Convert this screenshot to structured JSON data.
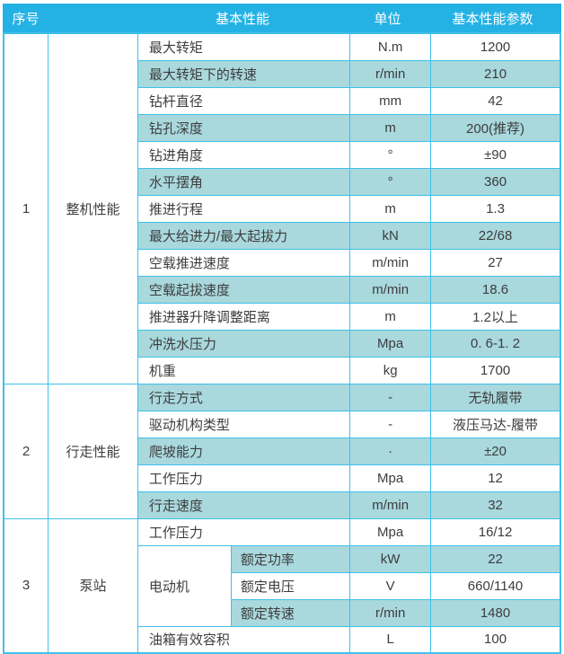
{
  "table": {
    "headers": {
      "index": "序号",
      "performance": "基本性能",
      "unit": "单位",
      "value": "基本性能参数"
    },
    "colors": {
      "header_bg": "#24b2e5",
      "row_alt_bg": "#a9d8dd",
      "border": "#3fc0ea",
      "text": "#3d3d3d"
    },
    "sections": [
      {
        "index": "1",
        "category": "整机性能",
        "rows": [
          {
            "label": "最大转矩",
            "unit": "N.m",
            "value": "1200"
          },
          {
            "label": "最大转矩下的转速",
            "unit": "r/min",
            "value": "210"
          },
          {
            "label": "钻杆直径",
            "unit": "mm",
            "value": "42"
          },
          {
            "label": "钻孔深度",
            "unit": "m",
            "value": "200(推荐)"
          },
          {
            "label": "钻进角度",
            "unit": "°",
            "value": "±90"
          },
          {
            "label": "水平摆角",
            "unit": "°",
            "value": "360"
          },
          {
            "label": "推进行程",
            "unit": "m",
            "value": "1.3"
          },
          {
            "label": "最大给进力/最大起拔力",
            "unit": "kN",
            "value": "22/68"
          },
          {
            "label": "空载推进速度",
            "unit": "m/min",
            "value": "27"
          },
          {
            "label": "空载起拔速度",
            "unit": "m/min",
            "value": "18.6"
          },
          {
            "label": "推进器升降调整距离",
            "unit": "m",
            "value": "1.2以上"
          },
          {
            "label": "冲洗水压力",
            "unit": "Mpa",
            "value": "0. 6-1. 2"
          },
          {
            "label": "机重",
            "unit": "kg",
            "value": "1700"
          }
        ]
      },
      {
        "index": "2",
        "category": "行走性能",
        "rows": [
          {
            "label": "行走方式",
            "unit": "-",
            "value": "无轨履带"
          },
          {
            "label": "驱动机构类型",
            "unit": "-",
            "value": "液压马达-履带"
          },
          {
            "label": "爬坡能力",
            "unit": "·",
            "value": "±20"
          },
          {
            "label": "工作压力",
            "unit": "Mpa",
            "value": "12"
          },
          {
            "label": "行走速度",
            "unit": "m/min",
            "value": "32"
          }
        ]
      },
      {
        "index": "3",
        "category": "泵站",
        "rows": [
          {
            "label": "工作压力",
            "unit": "Mpa",
            "value": "16/12"
          },
          {
            "group": "电动机",
            "group_rows": [
              {
                "label": "额定功率",
                "unit": "kW",
                "value": "22"
              },
              {
                "label": "额定电压",
                "unit": "V",
                "value": "660/1140"
              },
              {
                "label": "额定转速",
                "unit": "r/min",
                "value": "1480"
              }
            ]
          },
          {
            "label": "油箱有效容积",
            "unit": "L",
            "value": "100"
          }
        ]
      }
    ]
  }
}
